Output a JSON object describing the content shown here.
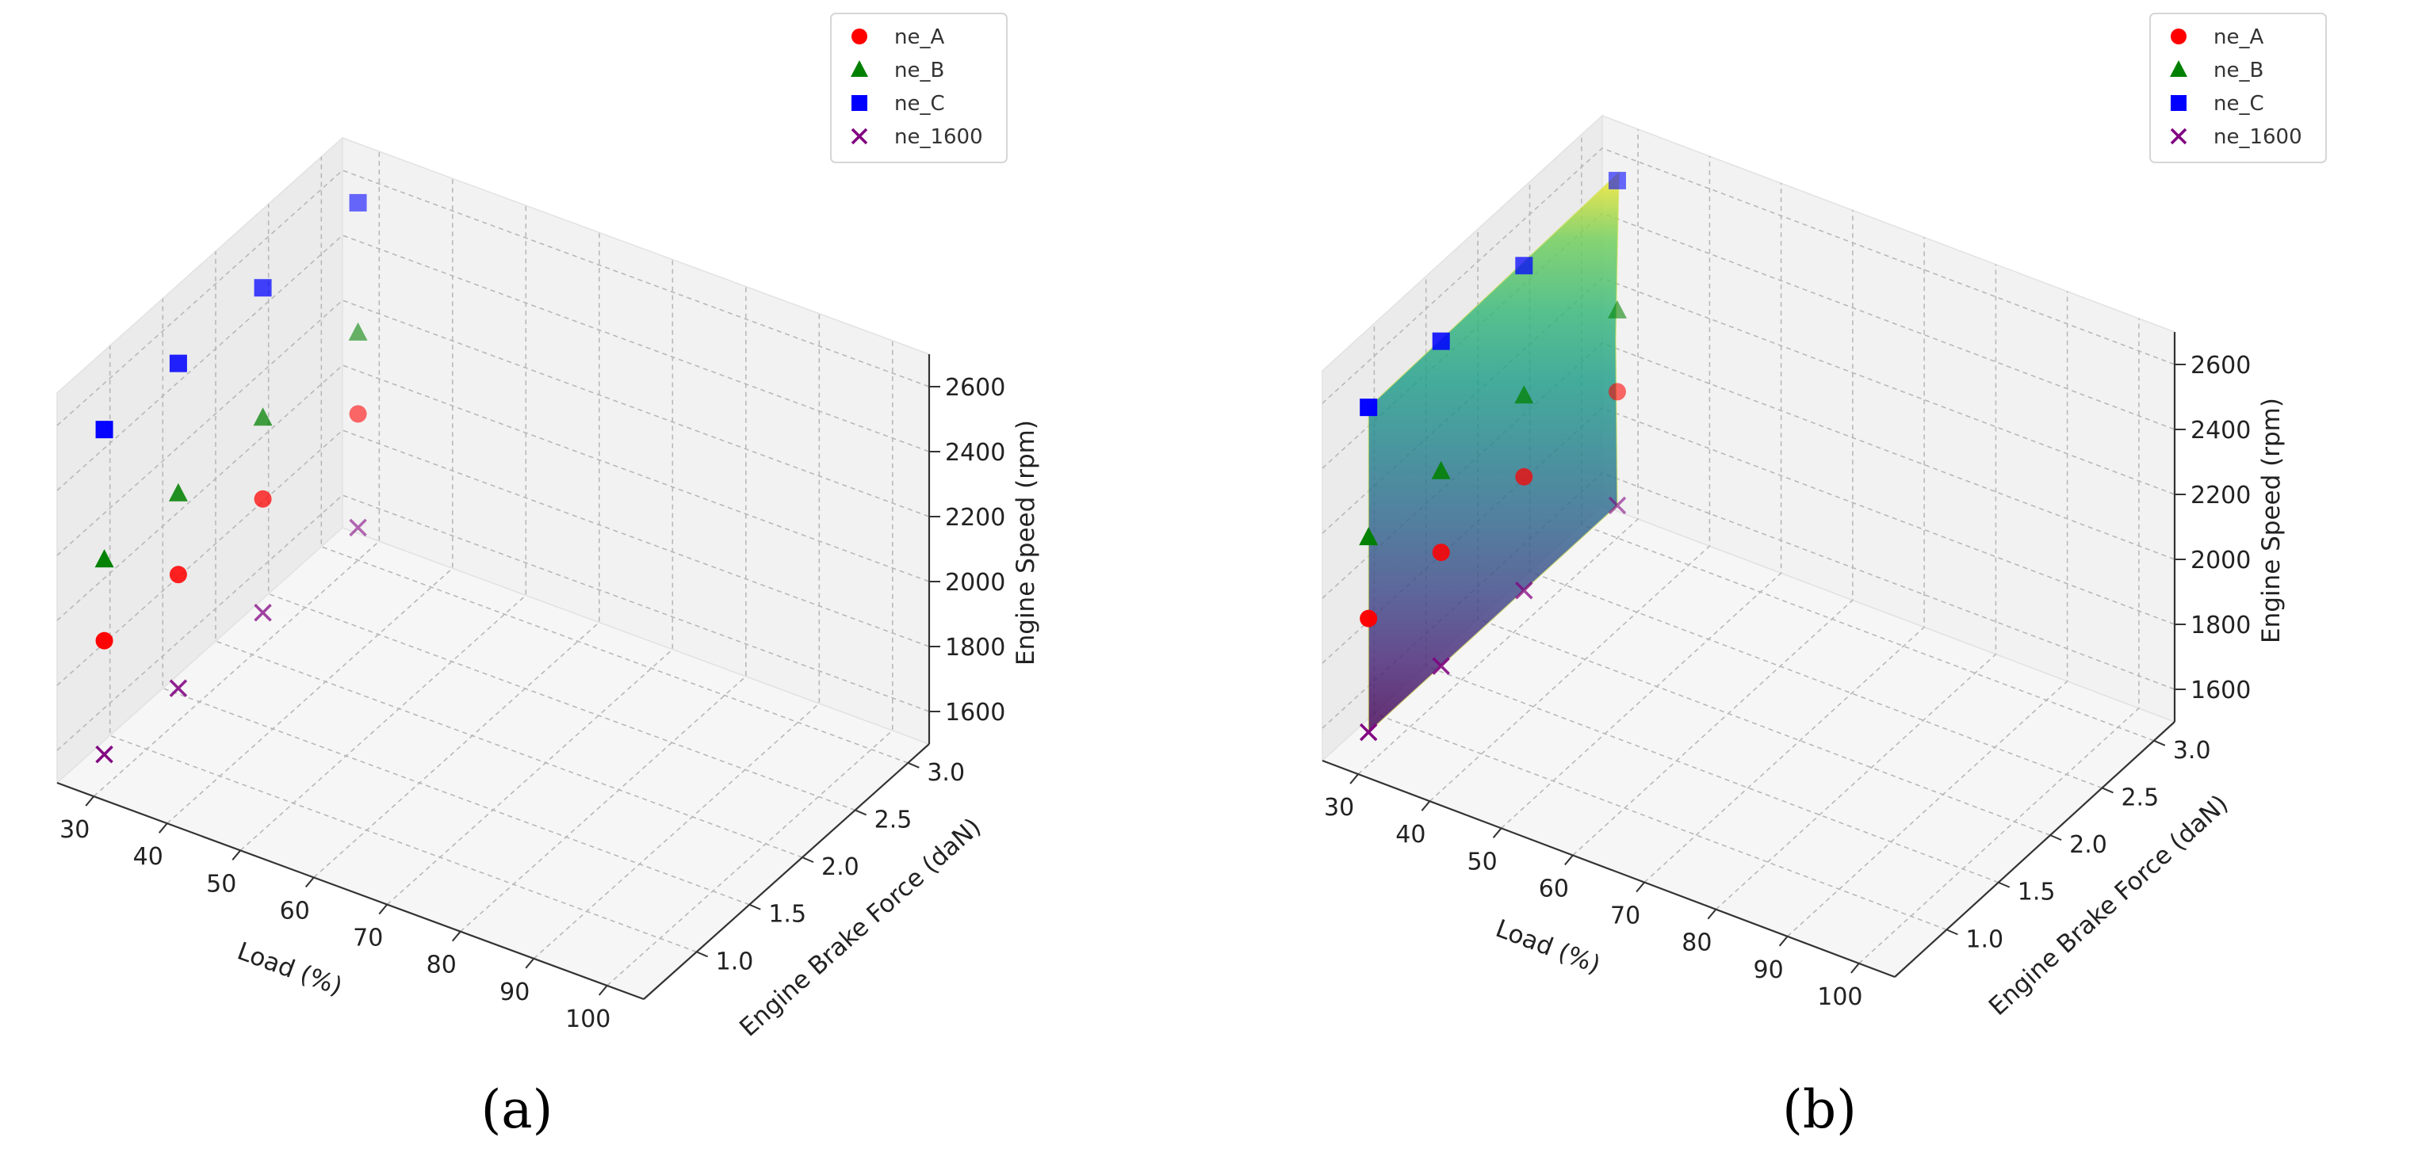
{
  "panel_labels": [
    "(a)",
    "(b)"
  ],
  "chart_data": [
    {
      "type": "scatter3d",
      "panel": "(a)",
      "xlabel": "Load (%)",
      "ylabel": "Engine Brake Force (daN)",
      "zlabel": "Engine Speed (rpm)",
      "xlim": [
        25,
        105
      ],
      "ylim": [
        0.5,
        3.2
      ],
      "zlim": [
        1500,
        2700
      ],
      "x_ticks": [
        "30",
        "40",
        "50",
        "60",
        "70",
        "80",
        "90",
        "100"
      ],
      "y_ticks": [
        "1.0",
        "1.5",
        "2.0",
        "2.5",
        "3.0"
      ],
      "z_ticks": [
        "1600",
        "1800",
        "2000",
        "2200",
        "2400",
        "2600"
      ],
      "grid": true,
      "legend_position": "top-right",
      "series": [
        {
          "name": "ne_A",
          "marker": "circle",
          "color": "#ff0000",
          "points": [
            [
              30,
              0.6,
              1950
            ],
            [
              30,
              1.3,
              1950
            ],
            [
              30,
              2.1,
              1950
            ],
            [
              30,
              3.0,
              1950
            ]
          ]
        },
        {
          "name": "ne_B",
          "marker": "triangle",
          "color": "#008000",
          "points": [
            [
              30,
              0.6,
              2200
            ],
            [
              30,
              1.3,
              2200
            ],
            [
              30,
              2.1,
              2200
            ],
            [
              30,
              3.0,
              2200
            ]
          ]
        },
        {
          "name": "ne_C",
          "marker": "square",
          "color": "#0000ff",
          "points": [
            [
              30,
              0.6,
              2600
            ],
            [
              30,
              1.3,
              2600
            ],
            [
              30,
              2.1,
              2600
            ],
            [
              30,
              3.0,
              2600
            ]
          ]
        },
        {
          "name": "ne_1600",
          "marker": "x",
          "color": "#800080",
          "points": [
            [
              30,
              0.6,
              1600
            ],
            [
              30,
              1.3,
              1600
            ],
            [
              30,
              2.1,
              1600
            ],
            [
              30,
              3.0,
              1600
            ]
          ]
        }
      ]
    },
    {
      "type": "surface3d",
      "panel": "(b)",
      "xlabel": "Load (%)",
      "ylabel": "Engine Brake Force (daN)",
      "zlabel": "Engine Speed (rpm)",
      "xlim": [
        25,
        105
      ],
      "ylim": [
        0.5,
        3.2
      ],
      "zlim": [
        1500,
        2700
      ],
      "x_ticks": [
        "30",
        "40",
        "50",
        "60",
        "70",
        "80",
        "90",
        "100"
      ],
      "y_ticks": [
        "1.0",
        "1.5",
        "2.0",
        "2.5",
        "3.0"
      ],
      "z_ticks": [
        "1600",
        "1800",
        "2000",
        "2200",
        "2400",
        "2600"
      ],
      "grid": true,
      "legend_position": "top-right",
      "colormap": "viridis",
      "surface": {
        "x": [
          30,
          30
        ],
        "y": [
          0.6,
          3.0
        ],
        "z": [
          1600,
          2600
        ]
      },
      "series": [
        {
          "name": "ne_A",
          "marker": "circle",
          "color": "#ff0000",
          "points": [
            [
              30,
              0.6,
              1950
            ],
            [
              30,
              1.3,
              1950
            ],
            [
              30,
              2.1,
              1950
            ],
            [
              30,
              3.0,
              1950
            ]
          ]
        },
        {
          "name": "ne_B",
          "marker": "triangle",
          "color": "#008000",
          "points": [
            [
              30,
              0.6,
              2200
            ],
            [
              30,
              1.3,
              2200
            ],
            [
              30,
              2.1,
              2200
            ],
            [
              30,
              3.0,
              2200
            ]
          ]
        },
        {
          "name": "ne_C",
          "marker": "square",
          "color": "#0000ff",
          "points": [
            [
              30,
              0.6,
              2600
            ],
            [
              30,
              1.3,
              2600
            ],
            [
              30,
              2.1,
              2600
            ],
            [
              30,
              3.0,
              2600
            ]
          ]
        },
        {
          "name": "ne_1600",
          "marker": "x",
          "color": "#800080",
          "points": [
            [
              30,
              0.6,
              1600
            ],
            [
              30,
              1.3,
              1600
            ],
            [
              30,
              2.1,
              1600
            ],
            [
              30,
              3.0,
              1600
            ]
          ]
        }
      ]
    }
  ]
}
